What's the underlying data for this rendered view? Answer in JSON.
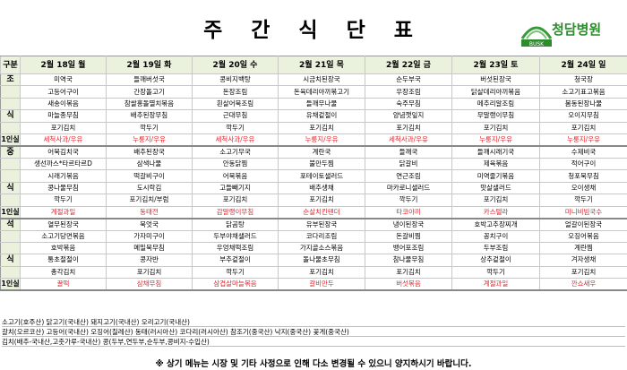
{
  "title": "주 간 식 단 표",
  "hospital": {
    "name": "청담병원",
    "logo_text": "BUSK"
  },
  "header": {
    "corner": "구분",
    "days": [
      "2월 18일 월",
      "2월 19일 화",
      "2월 20일 수",
      "2월 21일 목",
      "2월 22일 금",
      "2월 23일 토",
      "2월 24일 일"
    ]
  },
  "sections": {
    "breakfast": "조",
    "breakfast_2": "식",
    "lunch": "중",
    "lunch_2": "식",
    "dinner": "석",
    "dinner_2": "식",
    "snack_label": "1인실"
  },
  "breakfast_rows": [
    [
      "미역국",
      "들깨버섯국",
      "콩비지백탕",
      "시금치된장국",
      "순두부국",
      "버섯된장국",
      "청국장"
    ],
    [
      "고등어구이",
      "간장돌고기",
      "돈장조림",
      "돈육데리야끼볶고기",
      "우장조림",
      "닭살데리야끼볶음",
      "소고기표고볶음"
    ],
    [
      "새송이볶음",
      "참쌀홍돌멸치볶음",
      "흰살어묵조림",
      "들깨무나물",
      "숙주무침",
      "메추리알조림",
      "봄동된장나물"
    ],
    [
      "마늘종무침",
      "배추된장무침",
      "근대무침",
      "유채겉절이",
      "양념깻잎지",
      "무말랭이무침",
      "오이지무침"
    ],
    [
      "포기김치",
      "깍두기",
      "깍두기",
      "포기김치",
      "포기김치",
      "포기김치",
      "포기김치"
    ]
  ],
  "breakfast_snack": [
    "세척사과/우유",
    "누룽지/우유",
    "세척사과/우유",
    "누룽지/우유",
    "세척사과/우유",
    "누룽지/우유",
    "누룽지/우유"
  ],
  "lunch_rows": [
    [
      "어묵김치국",
      "배추된장국",
      "소고기무국",
      "계란국",
      "들깨국",
      "들깨시래기국",
      "수제비국"
    ],
    [
      "생선까스*타르타르D",
      "삼색나물",
      "안동닭찜",
      "불만두찜",
      "닭갈비",
      "제육볶음",
      "적어구이"
    ],
    [
      "시래기볶음",
      "떡갈비구이",
      "어묵볶음",
      "포테이토샐러드",
      "연근조림",
      "미역줄기볶음",
      "청포묵무침"
    ],
    [
      "콩나물무침",
      "도시락김",
      "고들빼기지",
      "배추생채",
      "마카로니샐러드",
      "맛살샐러드",
      "오이생채"
    ],
    [
      "깍두기",
      "포기김치/부럼",
      "포기김치",
      "포기김치",
      "깍두기",
      "포기김치",
      "깍두기"
    ]
  ],
  "lunch_snack": [
    "계절과일",
    "동태전",
    "감말랭이무침",
    "순살치킨텐더",
    "타코야끼",
    "카스텔라",
    "미니비빔국수"
  ],
  "dinner_rows": [
    [
      "열무된장국",
      "북엇국",
      "닭곰탕",
      "유부된장국",
      "냉이된장국",
      "호박고추장찌개",
      "얼갈이된장국"
    ],
    [
      "소고기당면볶음",
      "가자미구이",
      "두부야채샐러드",
      "코다리조림",
      "돈갈비찜",
      "꽁치구이",
      "오징어볶음"
    ],
    [
      "호박볶음",
      "메밀묵무침",
      "우엉채떡조림",
      "가지골소스볶음",
      "뱅어포조림",
      "두부조림",
      "계란찜"
    ],
    [
      "통초절절이",
      "콩자반",
      "부추겉절이",
      "돌나물초무침",
      "참나물무침",
      "상추겉절이",
      "겨자생채"
    ],
    [
      "총각김치",
      "포기김치",
      "깍두기",
      "포기김치",
      "포기김치",
      "깍두기",
      "포기김치"
    ]
  ],
  "dinner_snack": [
    "꿀떡",
    "삼채무침",
    "삼겹살마늘볶음",
    "갈비만두",
    "버섯볶음",
    "계절과일",
    "깐쇼새우"
  ],
  "origin_notes": [
    "소고기(호주산)    닭고기(국내산)  돼지고기(국내산)   오리고기(국내산)",
    "갈치(오르코산)  고등어(국내산)  오징어(칠레산)  동태(러시아산)   코다리(러시아산)   참조기(중국산)   낙지(중국산)    꽃게(중국산)",
    "김치(배추-국내산,고춧가루-국내산)        콩(두부,연두부,순두부,콩비지-수입산)"
  ],
  "footer_note": "※ 상기 메뉴는 시장 및 기타 사정으로 인해 다소 변경될 수 있으니 양지하시기 바랍니다.",
  "colors": {
    "header_bg": "#eaf1dd",
    "snack_text": "#e0262d",
    "logo_green": "#2e8b2e"
  }
}
